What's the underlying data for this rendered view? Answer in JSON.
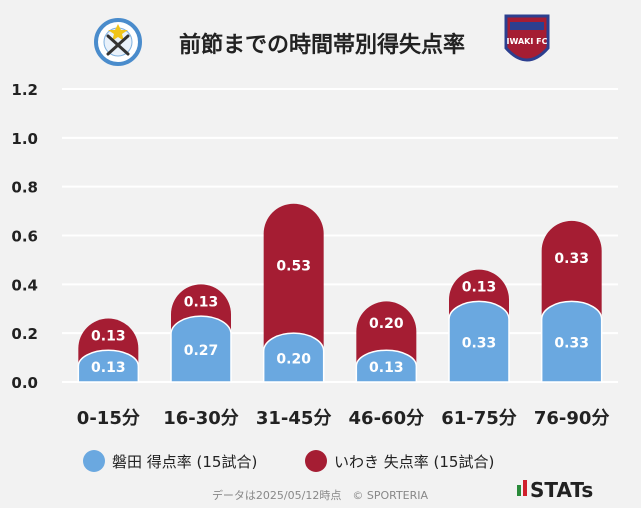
{
  "header": {
    "title": "前節までの時間帯別得失点率",
    "home_crest_icon": "jubilo-iwata-crest-icon",
    "away_crest_icon": "iwaki-fc-crest-icon",
    "away_crest_text": "IWAKI FC"
  },
  "colors": {
    "background": "#f2f2f2",
    "grid": "#ffffff",
    "scored": "#6aa8e0",
    "conceded": "#a51d33",
    "data_label": "#ffffff",
    "footer_text": "#888888"
  },
  "chart_data": {
    "type": "bar",
    "stacked": true,
    "categories": [
      "0-15分",
      "16-30分",
      "31-45分",
      "46-60分",
      "61-75分",
      "76-90分"
    ],
    "series": [
      {
        "name": "磐田 得点率 (15試合)",
        "values": [
          0.13,
          0.27,
          0.2,
          0.13,
          0.33,
          0.33
        ],
        "color": "#6aa8e0"
      },
      {
        "name": "いわき 失点率 (15試合)",
        "values": [
          0.13,
          0.13,
          0.53,
          0.2,
          0.13,
          0.33
        ],
        "color": "#a51d33"
      }
    ],
    "yticks": [
      "0.0",
      "0.2",
      "0.4",
      "0.6",
      "0.8",
      "1.0",
      "1.2"
    ],
    "ylim": [
      0,
      1.2
    ],
    "grid": true,
    "legend_position": "bottom"
  },
  "footer": {
    "note": "データは2025/05/12時点　© SPORTERIA",
    "brand": "STATs"
  }
}
